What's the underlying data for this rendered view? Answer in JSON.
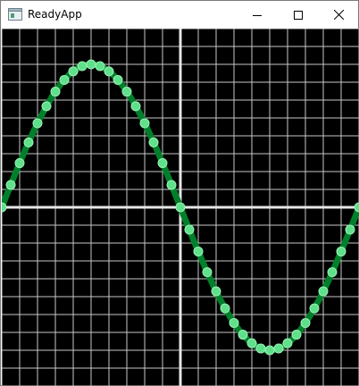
{
  "window": {
    "title": "ReadyApp",
    "icon": "app-window-icon",
    "controls": [
      "minimize-icon",
      "maximize-icon",
      "close-icon"
    ]
  },
  "plot": {
    "background": "#000000",
    "grid_color": "#c8c8c8",
    "axis_color": "#e6e6e6",
    "curve_color": "#00802b",
    "point_color": "#5fe08a",
    "point_edge": "#9af0b4"
  }
}
